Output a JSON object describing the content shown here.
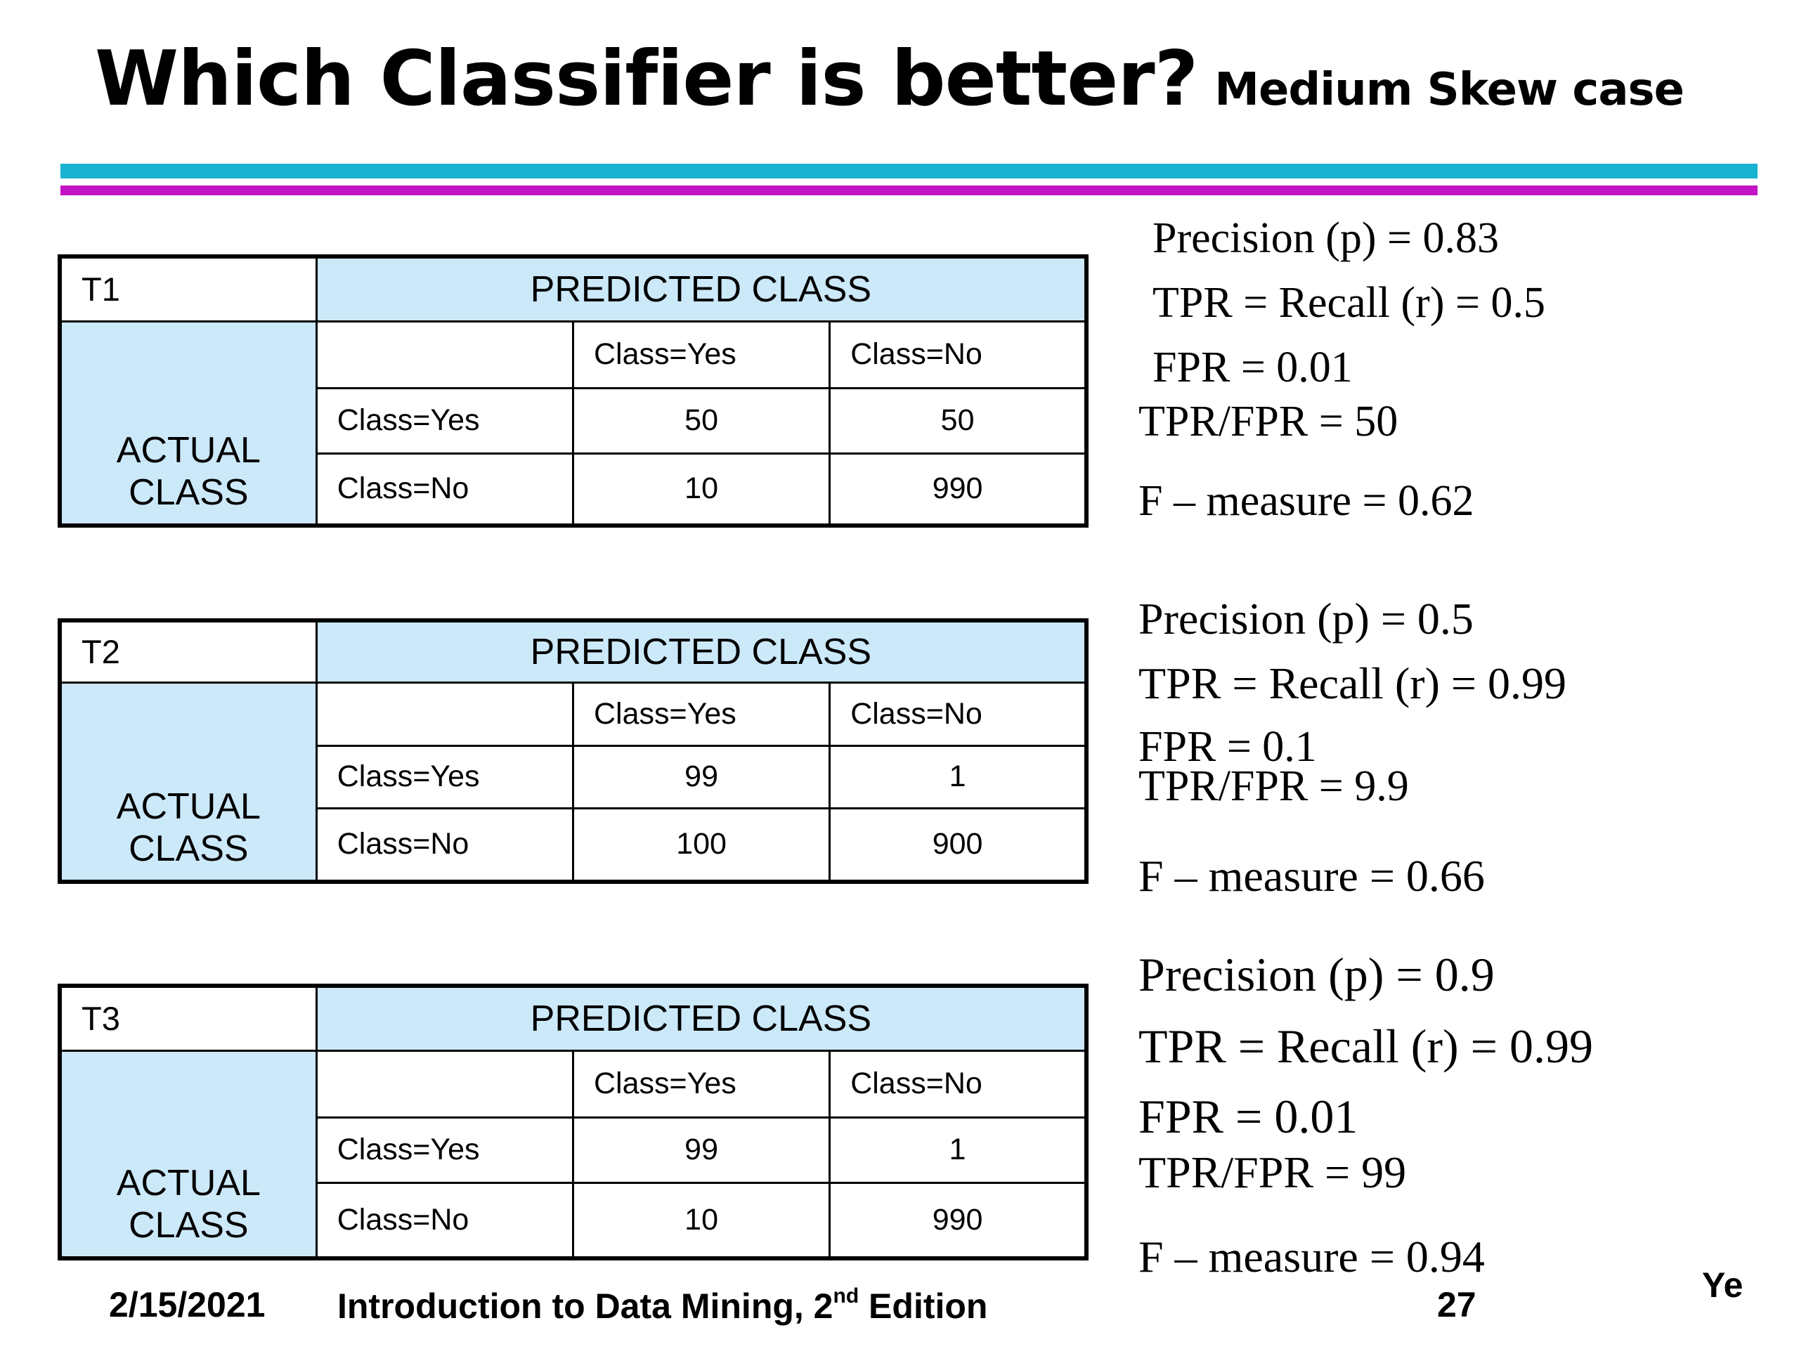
{
  "title": {
    "main": "Which Classifier is better?",
    "sub": "Medium Skew case"
  },
  "common": {
    "predicted_class": "PREDICTED CLASS",
    "actual_line1": "ACTUAL",
    "actual_line2": "CLASS",
    "class_yes": "Class=Yes",
    "class_no": "Class=No"
  },
  "tables": [
    {
      "name": "T1",
      "yes_yes": "50",
      "yes_no": "50",
      "no_yes": "10",
      "no_no": "990"
    },
    {
      "name": "T2",
      "yes_yes": "99",
      "yes_no": "1",
      "no_yes": "100",
      "no_no": "900"
    },
    {
      "name": "T3",
      "yes_yes": "99",
      "yes_no": "1",
      "no_yes": "10",
      "no_no": "990"
    }
  ],
  "metrics": [
    {
      "precision": "Precision (p) = 0.83",
      "tpr": "TPR  = Recall (r) = 0.5",
      "fpr": "FPR  = 0.01",
      "ratio": "TPR/FPR  = 50",
      "fmeasure": "F – measure = 0.62"
    },
    {
      "precision": "Precision (p) = 0.5",
      "tpr": "TPR  = Recall (r) = 0.99",
      "fpr": "FPR = 0.1",
      "ratio": "TPR/FPR = 9.9",
      "fmeasure": "F – measure = 0.66"
    },
    {
      "precision": "Precision (p) = 0.9",
      "tpr": "TPR  = Recall (r) = 0.99",
      "fpr": "FPR  = 0.01",
      "ratio": "TPR/FPR = 99",
      "fmeasure": "F – measure = 0.94"
    }
  ],
  "footer": {
    "date": "2/15/2021",
    "book_prefix": "Introduction to Data Mining, 2",
    "book_sup": "nd",
    "book_suffix": " Edition",
    "page": "27",
    "author": "Ye"
  }
}
